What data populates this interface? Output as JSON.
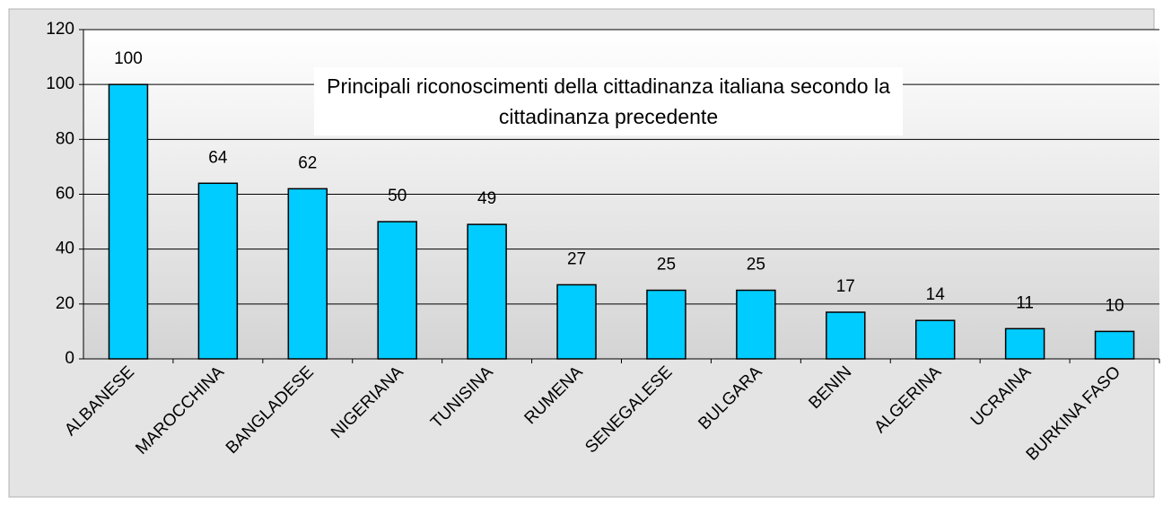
{
  "chart_data": {
    "type": "bar",
    "title": "Principali riconoscimenti della cittadinanza italiana secondo la cittadinanza precedente",
    "categories": [
      "ALBANESE",
      "MAROCCHINA",
      "BANGLADESE",
      "NIGERIANA",
      "TUNISINA",
      "RUMENA",
      "SENEGALESE",
      "BULGARA",
      "BENIN",
      "ALGERINA",
      "UCRAINA",
      "BURKINA FASO"
    ],
    "values": [
      100,
      64,
      62,
      50,
      49,
      27,
      25,
      25,
      17,
      14,
      11,
      10
    ],
    "color": "#00ccff",
    "ylim": [
      0,
      120
    ],
    "yticks": [
      0,
      20,
      40,
      60,
      80,
      100,
      120
    ],
    "grid": true
  }
}
